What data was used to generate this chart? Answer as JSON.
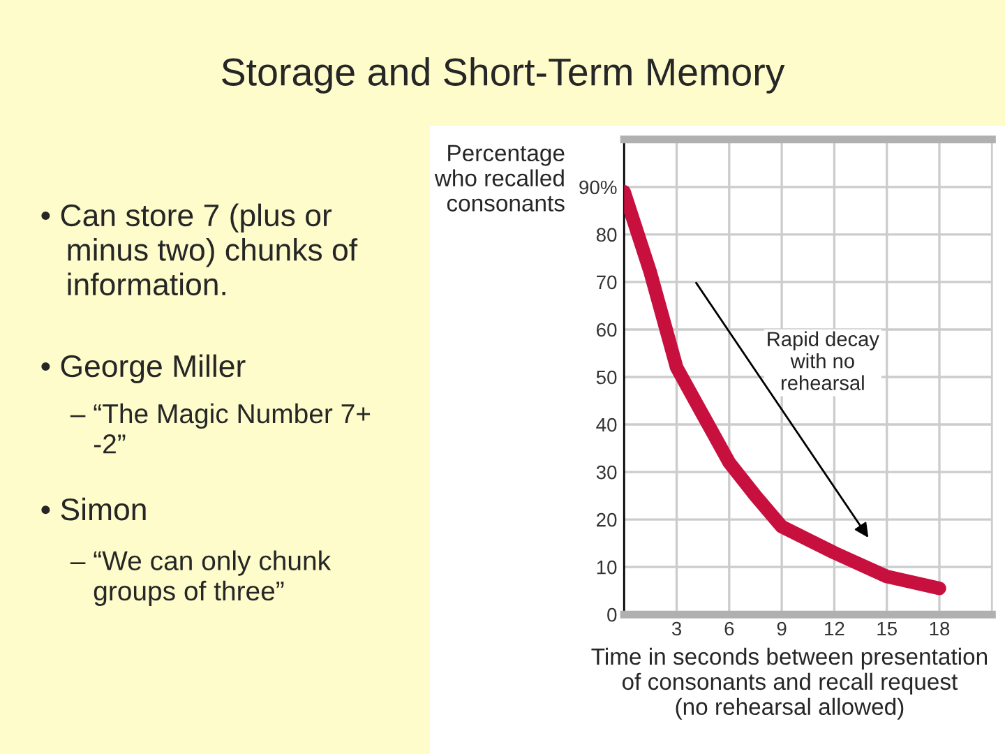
{
  "chart_data": {
    "type": "line",
    "title": "Storage and Short-Term Memory",
    "xlabel": "Time in seconds between presentation\nof consonants and recall request\n(no rehearsal allowed)",
    "ylabel": "Percentage\nwho recalled\nconsonants",
    "x": [
      0,
      1.5,
      3,
      4.5,
      6,
      7.5,
      9,
      12,
      15,
      18
    ],
    "series": [
      {
        "color": "#c8103f",
        "values": [
          89,
          72,
          52,
          42,
          32,
          25,
          18.5,
          13,
          8,
          5.5
        ]
      }
    ],
    "xlim": [
      0,
      21
    ],
    "ylim": [
      0,
      100
    ],
    "xticks": [
      3,
      6,
      9,
      12,
      15,
      18
    ],
    "yticks": [
      0,
      10,
      20,
      30,
      40,
      50,
      60,
      70,
      80,
      {
        "value": 90,
        "label": "90%"
      }
    ],
    "grid": true,
    "legend": false,
    "marker": "none",
    "line_style": "solid",
    "annotations": [
      "Rapid decay\nwith no\nrehearsal",
      "• Can store 7 (plus or\n   minus two) chunks of\n   information.",
      "• George Miller",
      "– “The Magic Number 7+\n   -2”",
      "• Simon",
      "– “We can only chunk\n   groups of three”"
    ]
  }
}
